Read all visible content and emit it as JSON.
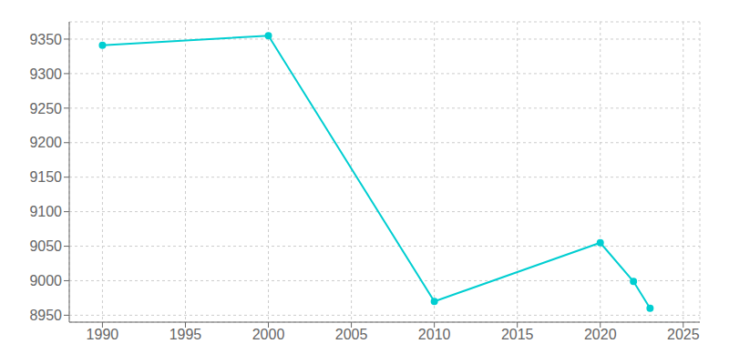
{
  "chart_data": {
    "type": "line",
    "x": [
      1990,
      2000,
      2010,
      2020,
      2022,
      2023
    ],
    "values": [
      9341,
      9355,
      8970,
      9055,
      8999,
      8960
    ],
    "color": "#00CED1",
    "marker": "circle",
    "xlim": [
      1988,
      2026
    ],
    "xticks": [
      1990,
      1995,
      2000,
      2005,
      2010,
      2015,
      2020,
      2025
    ],
    "ylim": [
      8940,
      9375
    ],
    "yticks": [
      8950,
      9000,
      9050,
      9100,
      9150,
      9200,
      9250,
      9300,
      9350
    ],
    "grid": true
  }
}
